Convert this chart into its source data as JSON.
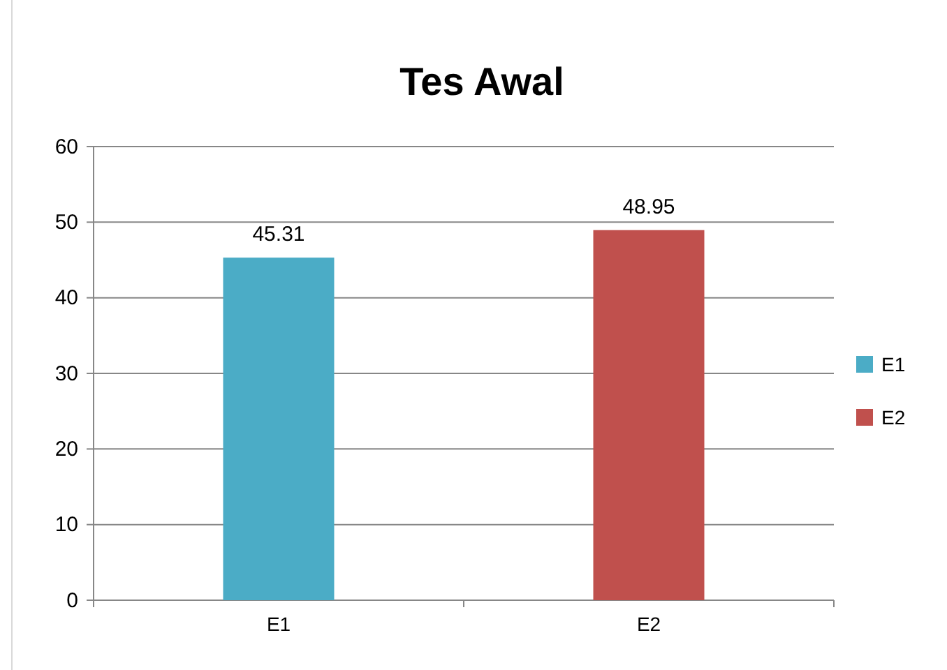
{
  "chart_data": {
    "type": "bar",
    "title": "Tes Awal",
    "categories": [
      "E1",
      "E2"
    ],
    "series": [
      {
        "name": "E1",
        "color": "#4bacc6",
        "values": [
          45.31,
          null
        ]
      },
      {
        "name": "E2",
        "color": "#c0504d",
        "values": [
          null,
          48.95
        ]
      }
    ],
    "ylim": [
      0,
      60
    ],
    "yticks": [
      0,
      10,
      20,
      30,
      40,
      50,
      60
    ],
    "grid": "y",
    "legend": "right",
    "data_labels": true
  }
}
